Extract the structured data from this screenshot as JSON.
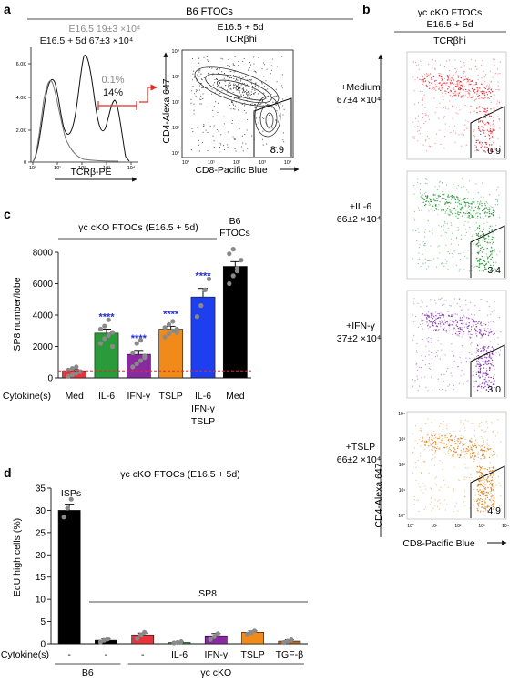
{
  "panel_labels": {
    "a": "a",
    "b": "b",
    "c": "c",
    "d": "d"
  },
  "panel_a": {
    "header": "B6 FTOCs",
    "hist": {
      "line1": "E16.5 19±3 ×10⁴",
      "line2": "E16.5 + 5d 67±3 ×10⁴",
      "y_ticks": [
        "6.0K",
        "4.0K",
        "2.0K",
        "0"
      ],
      "x_ticks": [
        "10⁰",
        "10¹",
        "10²",
        "10³",
        "10⁴"
      ],
      "xlabel": "TCRβ-PE",
      "gate_pct_grey": "0.1%",
      "gate_pct_black": "14%"
    },
    "contour": {
      "title1": "E16.5 + 5d",
      "title2": "TCRβhi",
      "ylabel": "CD4-Alexa 647",
      "xlabel": "CD8-Pacific Blue",
      "gate_value": "8.9",
      "ticks": [
        "10⁰",
        "10¹",
        "10²",
        "10³",
        "10⁴"
      ]
    }
  },
  "panel_b": {
    "title1": "γc cKO FTOCs",
    "title2": "E16.5 + 5d",
    "subtitle": "TCRβhi",
    "ylabel": "CD4-Alexa 647",
    "xlabel": "CD8-Pacific Blue",
    "plots": [
      {
        "label": "+Medium",
        "count": "67±4 ×10⁴",
        "gate": "0.9",
        "color": "#e8333a"
      },
      {
        "label": "+IL-6",
        "count": "66±2 ×10⁴",
        "gate": "3.4",
        "color": "#2a9a3a"
      },
      {
        "label": "+IFN-γ",
        "count": "37±2 ×10⁴",
        "gate": "3.0",
        "color": "#8a3bb0"
      },
      {
        "label": "+TSLP",
        "count": "66±2 ×10⁴",
        "gate": "4.9",
        "color": "#e08a2a"
      }
    ],
    "ticks": [
      "10⁰",
      "10¹",
      "10²",
      "10³",
      "10⁴"
    ]
  },
  "chart_data": [
    {
      "type": "bar",
      "panel": "c",
      "title": "γc cKO FTOCs (E16.5 + 5d)",
      "title_right": "B6 FTOCs",
      "ylabel": "SP8 number/lobe",
      "xlabel": "Cytokine(s)",
      "ylim": [
        0,
        8000
      ],
      "yticks": [
        0,
        2000,
        4000,
        6000,
        8000
      ],
      "categories": [
        "Med",
        "IL-6",
        "IFN-γ",
        "TSLP",
        "IL-6 IFN-γ TSLP",
        "Med"
      ],
      "values": [
        450,
        2850,
        1500,
        3100,
        5150,
        7100
      ],
      "errors": [
        80,
        250,
        250,
        180,
        550,
        300
      ],
      "colors": [
        "#e8333a",
        "#2a9a3a",
        "#8a2aa0",
        "#f08a1a",
        "#1e3ff0",
        "#000000"
      ],
      "significance": [
        "",
        "****",
        "****",
        "****",
        "****",
        ""
      ],
      "points": [
        [
          100,
          200,
          300,
          400,
          500,
          600,
          700
        ],
        [
          2200,
          2500,
          2700,
          2900,
          3100,
          3300,
          3700,
          2000
        ],
        [
          700,
          900,
          1100,
          1400,
          1600,
          2200,
          2400,
          1300
        ],
        [
          2600,
          2800,
          3000,
          3100,
          3200,
          3400,
          3600,
          2900
        ],
        [
          3900,
          4600,
          5600,
          6300
        ],
        [
          6000,
          6500,
          7000,
          7500,
          7900,
          8200,
          6800
        ]
      ]
    },
    {
      "type": "bar",
      "panel": "d",
      "title": "γc cKO FTOCs (E16.5 + 5d)",
      "ylabel": "EdU high cells (%)",
      "xlabel": "Cytokine(s)",
      "ylim": [
        0,
        35
      ],
      "yticks": [
        0,
        5,
        10,
        15,
        20,
        25,
        30,
        35
      ],
      "annotation_isps": "ISPs",
      "annotation_sp8": "SP8",
      "categories": [
        "-",
        "-",
        "-",
        "IL-6",
        "IFN-γ",
        "TSLP",
        "TGF-β"
      ],
      "groups": [
        {
          "label": "B6",
          "from": 0,
          "to": 1
        },
        {
          "label": "γc cKO",
          "from": 2,
          "to": 6
        }
      ],
      "values": [
        30.0,
        0.8,
        2.0,
        0.3,
        1.8,
        2.6,
        0.6
      ],
      "errors": [
        1.4,
        0.3,
        0.4,
        0.1,
        0.5,
        0.3,
        0.3
      ],
      "colors": [
        "#000000",
        "#000000",
        "#e8333a",
        "#2a9a3a",
        "#8a2aa0",
        "#f08a1a",
        "#b06a2a"
      ],
      "points": [
        [
          28.5,
          30.5,
          32.5
        ],
        [
          0.4,
          0.8,
          1.1
        ],
        [
          1.2,
          2.0,
          2.6
        ],
        [
          0.2,
          0.3,
          0.5
        ],
        [
          1.0,
          1.6,
          2.3
        ],
        [
          2.2,
          2.5,
          2.9
        ],
        [
          0.3,
          0.6,
          0.9
        ]
      ]
    }
  ]
}
